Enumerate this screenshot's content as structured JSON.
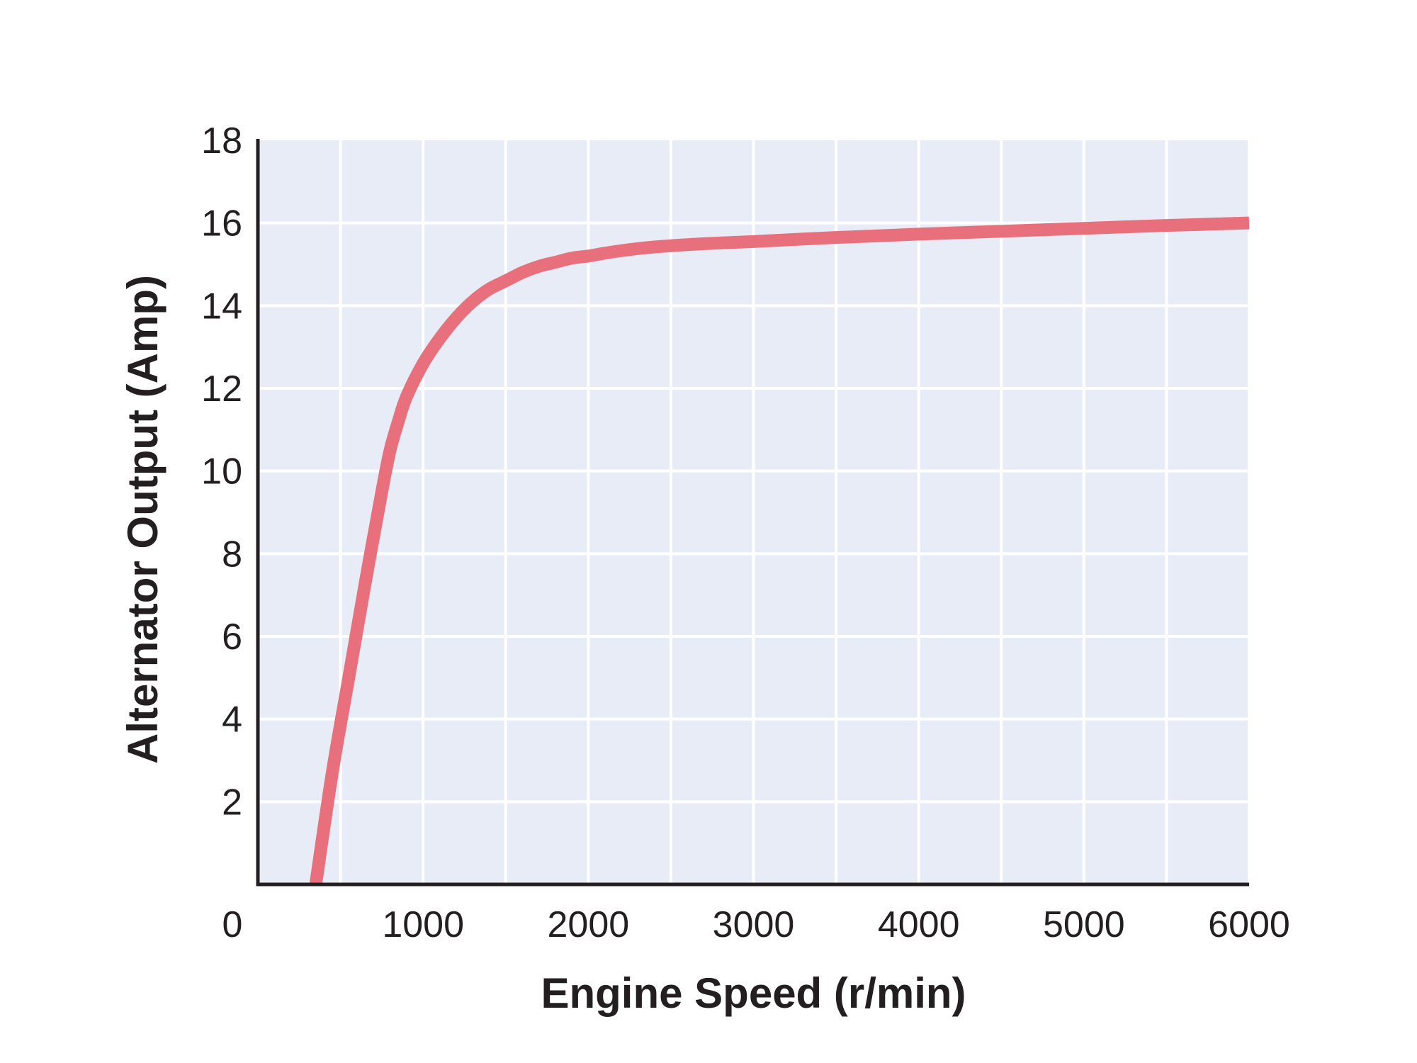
{
  "chart_data": {
    "type": "line",
    "title": "",
    "xlabel": "Engine Speed (r/min)",
    "ylabel": "Alternator Output (Amp)",
    "xlim": [
      0,
      6000
    ],
    "ylim": [
      0,
      18
    ],
    "x_ticks": [
      0,
      1000,
      2000,
      3000,
      4000,
      5000,
      6000
    ],
    "x_tick_labels": [
      "0",
      "1000",
      "2000",
      "3000",
      "4000",
      "5000",
      "6000"
    ],
    "y_ticks": [
      2,
      4,
      6,
      8,
      10,
      12,
      14,
      16,
      18
    ],
    "y_tick_labels": [
      "2",
      "4",
      "6",
      "8",
      "10",
      "12",
      "14",
      "16",
      "18"
    ],
    "x_minor_step": 500,
    "y_minor_step": 2,
    "grid": true,
    "legend": "none",
    "colors": {
      "series": "#e8707c",
      "plot_background": "#e8ecf6",
      "grid": "#ffffff",
      "axis": "#231f20",
      "text": "#231f20"
    },
    "series": [
      {
        "x": [
          350,
          450,
          550,
          650,
          750,
          800,
          850,
          900,
          1000,
          1100,
          1200,
          1300,
          1400,
          1500,
          1600,
          1700,
          1800,
          1900,
          2000,
          2100,
          2200,
          2300,
          2400,
          2500,
          2700,
          3000,
          3500,
          4000,
          4500,
          5000,
          5500,
          6000
        ],
        "y": [
          0,
          2.7,
          5.0,
          7.3,
          9.5,
          10.5,
          11.2,
          11.8,
          12.6,
          13.2,
          13.7,
          14.1,
          14.4,
          14.6,
          14.8,
          14.95,
          15.05,
          15.15,
          15.2,
          15.27,
          15.33,
          15.38,
          15.42,
          15.45,
          15.5,
          15.55,
          15.65,
          15.73,
          15.8,
          15.87,
          15.94,
          16.0
        ]
      }
    ]
  }
}
